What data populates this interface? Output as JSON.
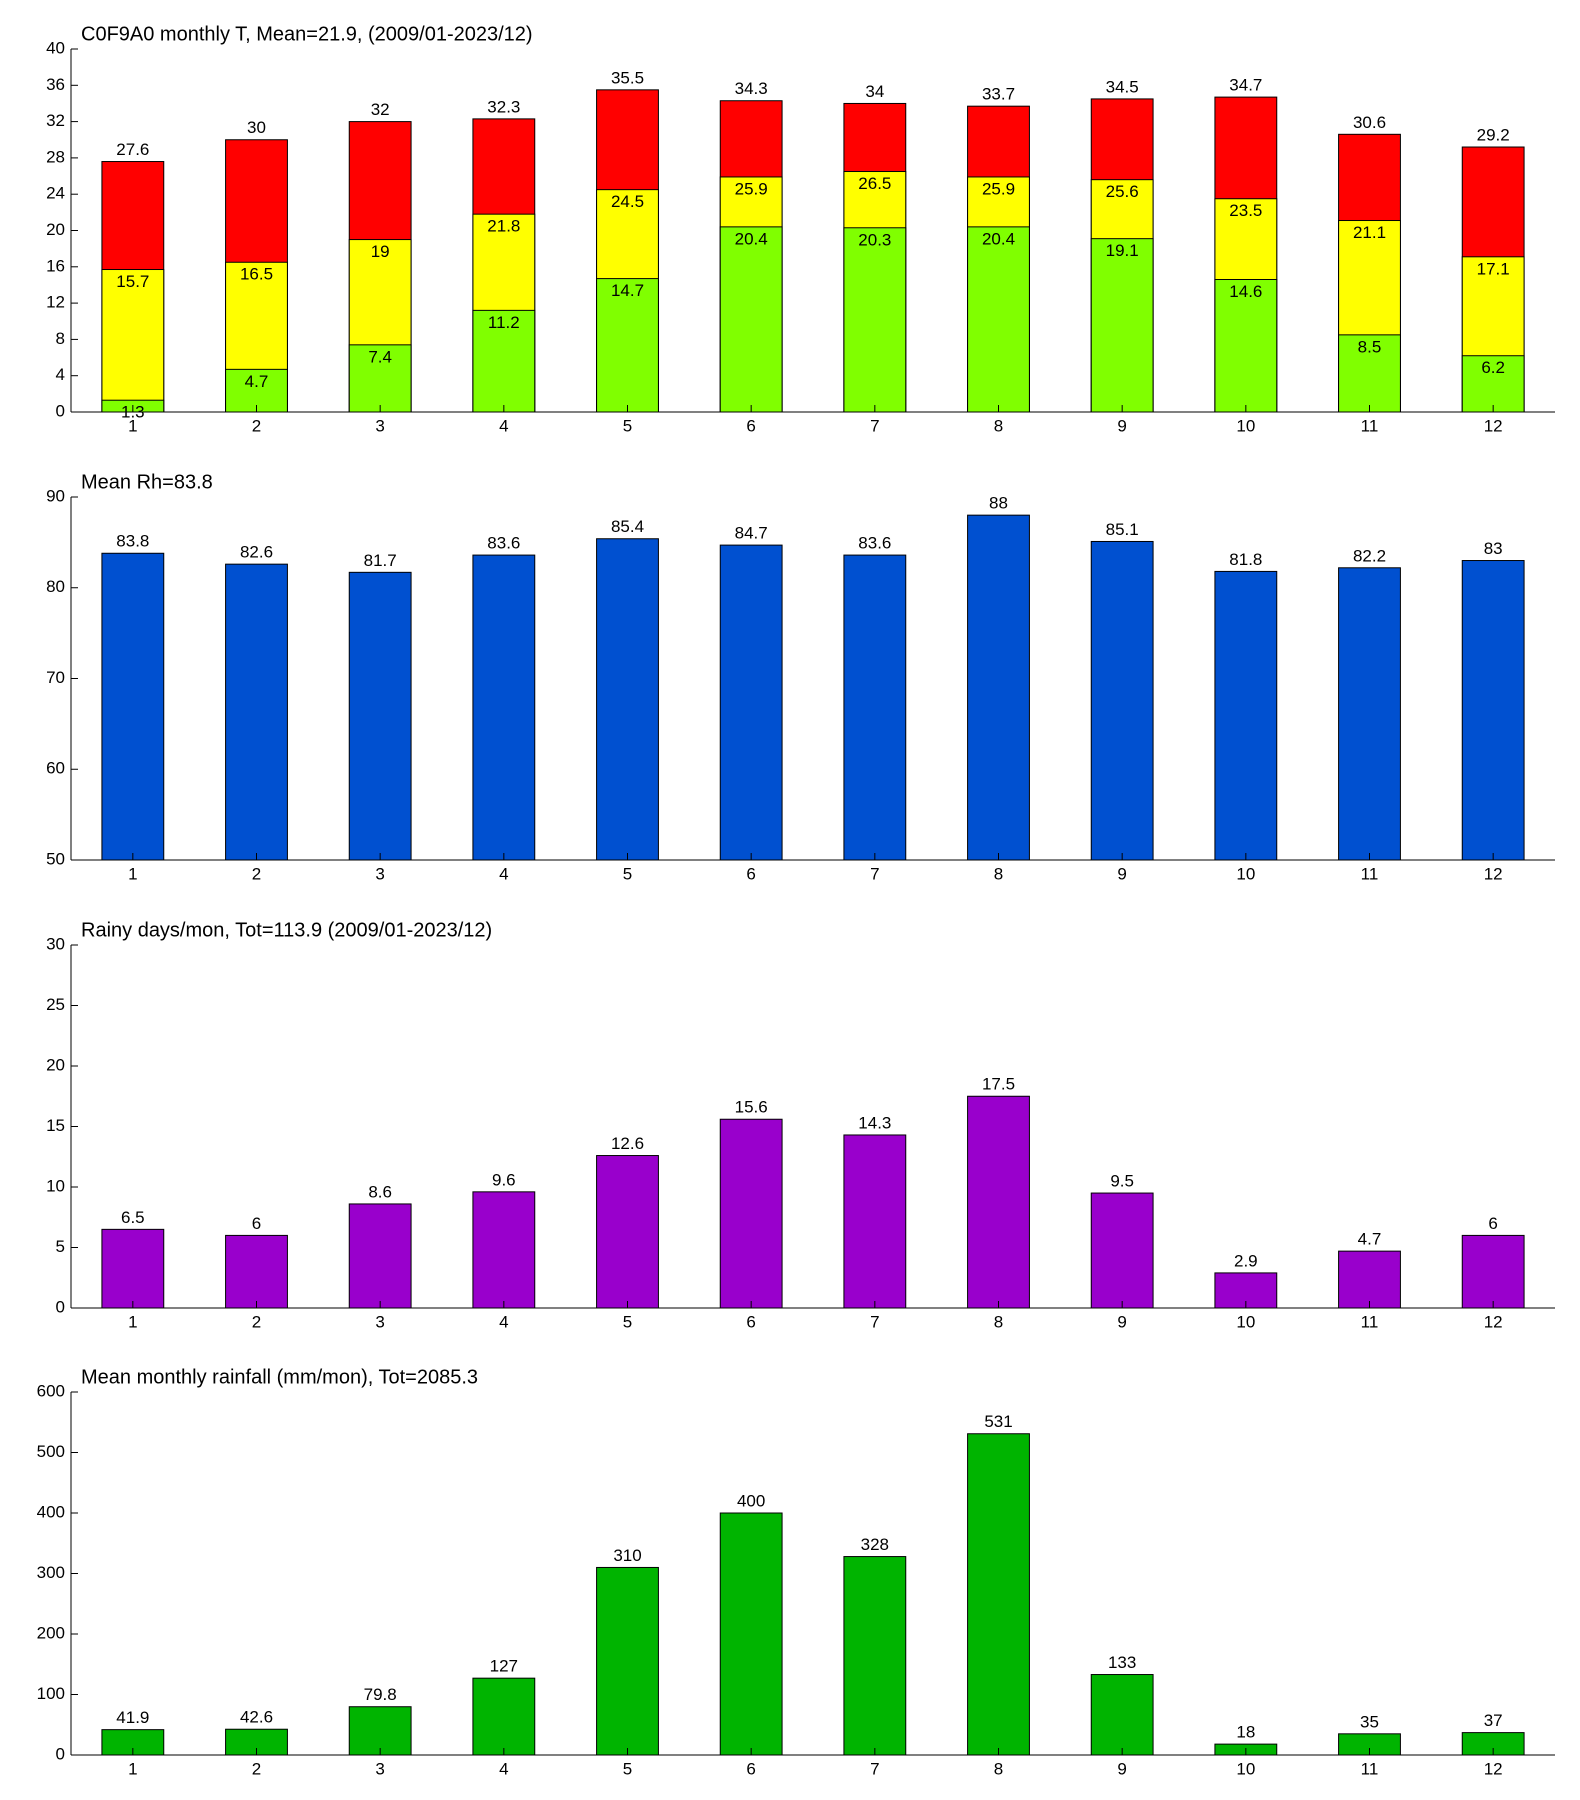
{
  "chart_data": [
    {
      "type": "bar",
      "title": "C0F9A0 monthly T, Mean=21.9, (2009/01-2023/12)",
      "categories": [
        "1",
        "2",
        "3",
        "4",
        "5",
        "6",
        "7",
        "8",
        "9",
        "10",
        "11",
        "12"
      ],
      "series": [
        {
          "color": "#ff0000",
          "values": [
            27.6,
            30,
            32,
            32.3,
            35.5,
            34.3,
            34,
            33.7,
            34.5,
            34.7,
            30.6,
            29.2
          ]
        },
        {
          "color": "#ffff00",
          "values": [
            15.7,
            16.5,
            19,
            21.8,
            24.5,
            25.9,
            26.5,
            25.9,
            25.6,
            23.5,
            21.1,
            17.1
          ]
        },
        {
          "color": "#80ff00",
          "values": [
            1.3,
            4.7,
            7.4,
            11.2,
            14.7,
            20.4,
            20.3,
            20.4,
            19.1,
            14.6,
            8.5,
            6.2
          ]
        }
      ],
      "ylim": [
        0,
        40
      ],
      "yticks": [
        0,
        4,
        8,
        12,
        16,
        20,
        24,
        28,
        32,
        36,
        40
      ]
    },
    {
      "type": "bar",
      "title": "Mean Rh=83.8",
      "categories": [
        "1",
        "2",
        "3",
        "4",
        "5",
        "6",
        "7",
        "8",
        "9",
        "10",
        "11",
        "12"
      ],
      "values": [
        83.8,
        82.6,
        81.7,
        83.6,
        85.4,
        84.7,
        83.6,
        88,
        85.1,
        81.8,
        82.2,
        83
      ],
      "color": "#0050d0",
      "ylim": [
        50,
        90
      ],
      "yticks": [
        50,
        60,
        70,
        80,
        90
      ]
    },
    {
      "type": "bar",
      "title": "Rainy days/mon, Tot=113.9 (2009/01-2023/12)",
      "categories": [
        "1",
        "2",
        "3",
        "4",
        "5",
        "6",
        "7",
        "8",
        "9",
        "10",
        "11",
        "12"
      ],
      "values": [
        6.5,
        6,
        8.6,
        9.6,
        12.6,
        15.6,
        14.3,
        17.5,
        9.5,
        2.9,
        4.7,
        6
      ],
      "color": "#9900cc",
      "ylim": [
        0,
        30
      ],
      "yticks": [
        0,
        5,
        10,
        15,
        20,
        25,
        30
      ]
    },
    {
      "type": "bar",
      "title": "Mean monthly rainfall (mm/mon), Tot=2085.3",
      "categories": [
        "1",
        "2",
        "3",
        "4",
        "5",
        "6",
        "7",
        "8",
        "9",
        "10",
        "11",
        "12"
      ],
      "values": [
        41.9,
        42.6,
        79.8,
        127,
        310,
        400,
        328,
        531,
        133,
        18,
        35,
        37
      ],
      "color": "#00b400",
      "ylim": [
        0,
        600
      ],
      "yticks": [
        0,
        100,
        200,
        300,
        400,
        500,
        600
      ]
    }
  ]
}
